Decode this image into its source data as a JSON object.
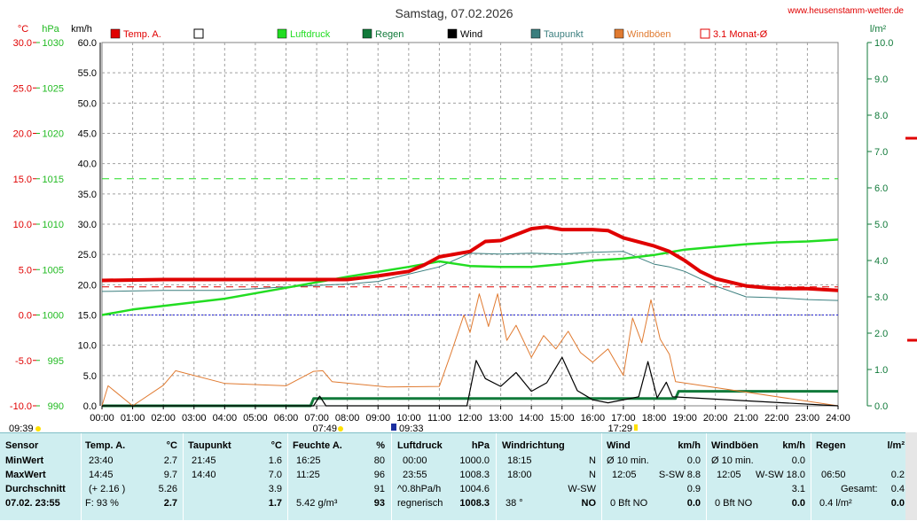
{
  "header": {
    "title": "Samstag, 07.02.2026",
    "site": "www.heusenstamm-wetter.de"
  },
  "axes": {
    "temp_unit": "°C",
    "press_unit": "hPa",
    "wind_unit": "km/h",
    "rain_unit": "l/m²",
    "temp_ticks": [
      "30.0",
      "25.0",
      "20.0",
      "15.0",
      "10.0",
      "5.0",
      "0.0",
      "-5.0",
      "-10.0"
    ],
    "press_ticks": [
      "1030",
      "1025",
      "1020",
      "1015",
      "1010",
      "1005",
      "1000",
      "995",
      "990"
    ],
    "wind_ticks": [
      "60.0",
      "55.0",
      "50.0",
      "45.0",
      "40.0",
      "35.0",
      "30.0",
      "25.0",
      "20.0",
      "15.0",
      "10.0",
      "5.0",
      "0.0"
    ],
    "rain_ticks": [
      "10.0",
      "9.0",
      "8.0",
      "7.0",
      "6.0",
      "5.0",
      "4.0",
      "3.0",
      "2.0",
      "1.0",
      "0.0"
    ],
    "time_ticks": [
      "00:00",
      "01:00",
      "02:00",
      "03:00",
      "04:00",
      "05:00",
      "06:00",
      "07:00",
      "08:00",
      "09:00",
      "10:00",
      "11:00",
      "12:00",
      "13:00",
      "14:00",
      "15:00",
      "16:00",
      "17:00",
      "18:00",
      "19:00",
      "20:00",
      "21:00",
      "22:00",
      "23:00",
      "24:00"
    ]
  },
  "legend": [
    {
      "label": "Temp. A.",
      "color": "#e00000",
      "style": "fill"
    },
    {
      "label": "",
      "color": "#ffffff",
      "style": "box"
    },
    {
      "label": "Luftdruck",
      "color": "#22dd22",
      "style": "fill"
    },
    {
      "label": "Regen",
      "color": "#117a3a",
      "style": "fill"
    },
    {
      "label": "Wind",
      "color": "#000000",
      "style": "fill"
    },
    {
      "label": "Taupunkt",
      "color": "#3c7f7f",
      "style": "fill"
    },
    {
      "label": "Windböen",
      "color": "#e07a30",
      "style": "fill"
    },
    {
      "label": "3.1 Monat-Ø",
      "color": "#e00000",
      "style": "box"
    }
  ],
  "sun": {
    "sunrise_label": "07:49",
    "sunset_label": "17:29",
    "moonrise_label": "09:33",
    "prev_label": "09:39"
  },
  "chart_data": {
    "type": "line",
    "title": "Samstag, 07.02.2026",
    "x_range": [
      "00:00",
      "24:00"
    ],
    "x_hours": [
      0,
      1,
      2,
      3,
      4,
      5,
      6,
      7,
      8,
      9,
      10,
      11,
      12,
      13,
      14,
      15,
      16,
      17,
      18,
      19,
      20,
      21,
      22,
      23,
      24
    ],
    "ylim_temp": [
      -10,
      30
    ],
    "ylim_pressure": [
      990,
      1030
    ],
    "ylim_wind": [
      0,
      60
    ],
    "ylim_rain": [
      0,
      10
    ],
    "reference_lines": {
      "monthly_avg_temp": 3.1,
      "pressure_1015": 1015,
      "temp_zero": 0.0
    },
    "series": [
      {
        "name": "Temp. A.",
        "axis": "temp",
        "color": "#e00000",
        "x": [
          0,
          2,
          4,
          6,
          7,
          8,
          9,
          10,
          10.5,
          11,
          12,
          12.5,
          13,
          14,
          14.5,
          15,
          16,
          16.5,
          17,
          18,
          18.5,
          19,
          19.5,
          20,
          20.5,
          21,
          22,
          23,
          24
        ],
        "values": [
          3.8,
          3.9,
          3.9,
          3.9,
          3.9,
          3.9,
          4.3,
          4.8,
          5.5,
          6.4,
          7.0,
          8.1,
          8.2,
          9.5,
          9.7,
          9.4,
          9.4,
          9.3,
          8.5,
          7.6,
          7.0,
          6.0,
          4.8,
          4.0,
          3.6,
          3.2,
          2.9,
          2.9,
          2.7
        ]
      },
      {
        "name": "Taupunkt",
        "axis": "temp",
        "color": "#3c7f7f",
        "x": [
          0,
          2,
          4,
          6,
          8,
          9,
          10,
          11,
          12,
          13,
          14,
          15,
          16,
          17,
          18,
          18.5,
          19,
          20,
          21,
          22,
          23,
          24
        ],
        "values": [
          2.6,
          2.7,
          2.7,
          3.1,
          3.4,
          3.7,
          4.5,
          5.3,
          6.8,
          6.7,
          6.8,
          6.7,
          6.9,
          7.0,
          5.6,
          5.3,
          4.8,
          3.2,
          2.0,
          1.9,
          1.7,
          1.6
        ]
      },
      {
        "name": "Luftdruck",
        "axis": "pressure",
        "color": "#22dd22",
        "x": [
          0,
          1,
          2,
          4,
          6,
          8,
          10,
          11,
          12,
          13,
          14,
          15,
          16,
          17,
          18,
          19,
          20,
          21,
          22,
          23,
          24
        ],
        "values": [
          1000.0,
          1000.6,
          1001.0,
          1001.8,
          1003.0,
          1004.2,
          1005.3,
          1005.9,
          1005.4,
          1005.3,
          1005.3,
          1005.6,
          1006.0,
          1006.2,
          1006.6,
          1007.2,
          1007.5,
          1007.8,
          1008.0,
          1008.1,
          1008.3
        ]
      },
      {
        "name": "Wind",
        "axis": "wind",
        "color": "#000000",
        "x": [
          0,
          6.9,
          7.1,
          7.3,
          9.3,
          11.9,
          12.2,
          12.5,
          13.0,
          13.5,
          14.0,
          14.5,
          15.0,
          15.5,
          16.0,
          16.5,
          17.5,
          17.8,
          18.1,
          18.4,
          18.6,
          24
        ],
        "values": [
          0,
          0,
          1.6,
          0,
          0,
          0,
          7.5,
          4.5,
          3.2,
          5.5,
          2.4,
          3.8,
          8.0,
          2.5,
          1.0,
          0.5,
          1.5,
          7.3,
          1.3,
          3.9,
          1.5,
          0
        ]
      },
      {
        "name": "Windböen",
        "axis": "wind",
        "color": "#e07a30",
        "x": [
          0,
          0.2,
          1.0,
          2.0,
          2.4,
          4.0,
          6.0,
          6.9,
          7.2,
          7.5,
          9.3,
          11.0,
          11.4,
          11.8,
          12.0,
          12.3,
          12.6,
          12.9,
          13.2,
          13.5,
          14.0,
          14.4,
          14.8,
          15.2,
          15.6,
          16.0,
          16.5,
          17.0,
          17.3,
          17.6,
          17.9,
          18.2,
          18.5,
          18.7,
          24
        ],
        "values": [
          0,
          3.3,
          0,
          3.4,
          5.8,
          3.7,
          3.3,
          5.7,
          5.8,
          4.0,
          3.1,
          3.2,
          9.0,
          15.0,
          12.1,
          18.5,
          13.1,
          18.5,
          10.8,
          13.3,
          8.0,
          11.6,
          9.4,
          12.3,
          8.8,
          7.2,
          9.4,
          5.0,
          14.5,
          10.4,
          17.5,
          11.0,
          8.5,
          4.0,
          0
        ]
      },
      {
        "name": "Regen",
        "axis": "rain",
        "color": "#117a3a",
        "x": [
          0,
          6.8,
          6.9,
          18.7,
          18.8,
          24
        ],
        "values": [
          0,
          0,
          0.2,
          0.2,
          0.4,
          0.4
        ]
      }
    ]
  },
  "table": {
    "headers": {
      "sensor": "Sensor",
      "temp": "Temp. A.",
      "temp_u": "°C",
      "dew": "Taupunkt",
      "dew_u": "°C",
      "hum": "Feuchte A.",
      "hum_u": "%",
      "press": "Luftdruck",
      "press_u": "hPa",
      "wdir": "Windrichtung",
      "wind": "Wind",
      "wind_u": "km/h",
      "gust": "Windböen",
      "gust_u": "km/h",
      "rain": "Regen",
      "rain_u": "l/m²"
    },
    "labels": {
      "min": "MinWert",
      "max": "MaxWert",
      "avg": "Durchschnitt",
      "now": "07.02. 23:55"
    },
    "temp": {
      "min_t": "23:40",
      "min_v": "2.7",
      "max_t": "14:45",
      "max_v": "9.7",
      "avg_d": "(+ 2.16 )",
      "avg_v": "5.26",
      "now_f": "F: 93 %",
      "now_v": "2.7"
    },
    "dew": {
      "min_t": "21:45",
      "min_v": "1.6",
      "max_t": "14:40",
      "max_v": "7.0",
      "avg_v": "3.9",
      "now_v": "1.7"
    },
    "hum": {
      "min_t": "16:25",
      "min_v": "80",
      "max_t": "11:25",
      "max_v": "96",
      "avg_v": "91",
      "now_a": "5.42 g/m³",
      "now_v": "93"
    },
    "press": {
      "min_t": "00:00",
      "min_v": "1000.0",
      "max_t": "23:55",
      "max_v": "1008.3",
      "avg_d": "^0.8hPa/h",
      "avg_v": "1004.6",
      "now_t": "regnerisch",
      "now_v": "1008.3"
    },
    "wdir": {
      "min_t": "18:15",
      "min_v": "N",
      "max_t": "18:00",
      "max_v": "N",
      "avg_v": "W-SW",
      "now_d": "38 °",
      "now_v": "NO"
    },
    "wind": {
      "min_t": "Ø 10 min.",
      "min_v": "0.0",
      "max_t": "12:05",
      "max_d": "S-SW 8.8",
      "avg_v": "0.9",
      "now_b": "0 Bft NO",
      "now_v": "0.0"
    },
    "gust": {
      "min_t": "Ø 10 min.",
      "min_v": "0.0",
      "max_t": "12:05",
      "max_d": "W-SW 18.0",
      "avg_v": "3.1",
      "now_b": "0 Bft NO",
      "now_v": "0.0"
    },
    "rain": {
      "max_t": "06:50",
      "max_v": "0.2",
      "avg_l": "Gesamt:",
      "avg_v": "0.4",
      "now_r": "0.4 l/m²",
      "now_v": "0.0"
    }
  }
}
